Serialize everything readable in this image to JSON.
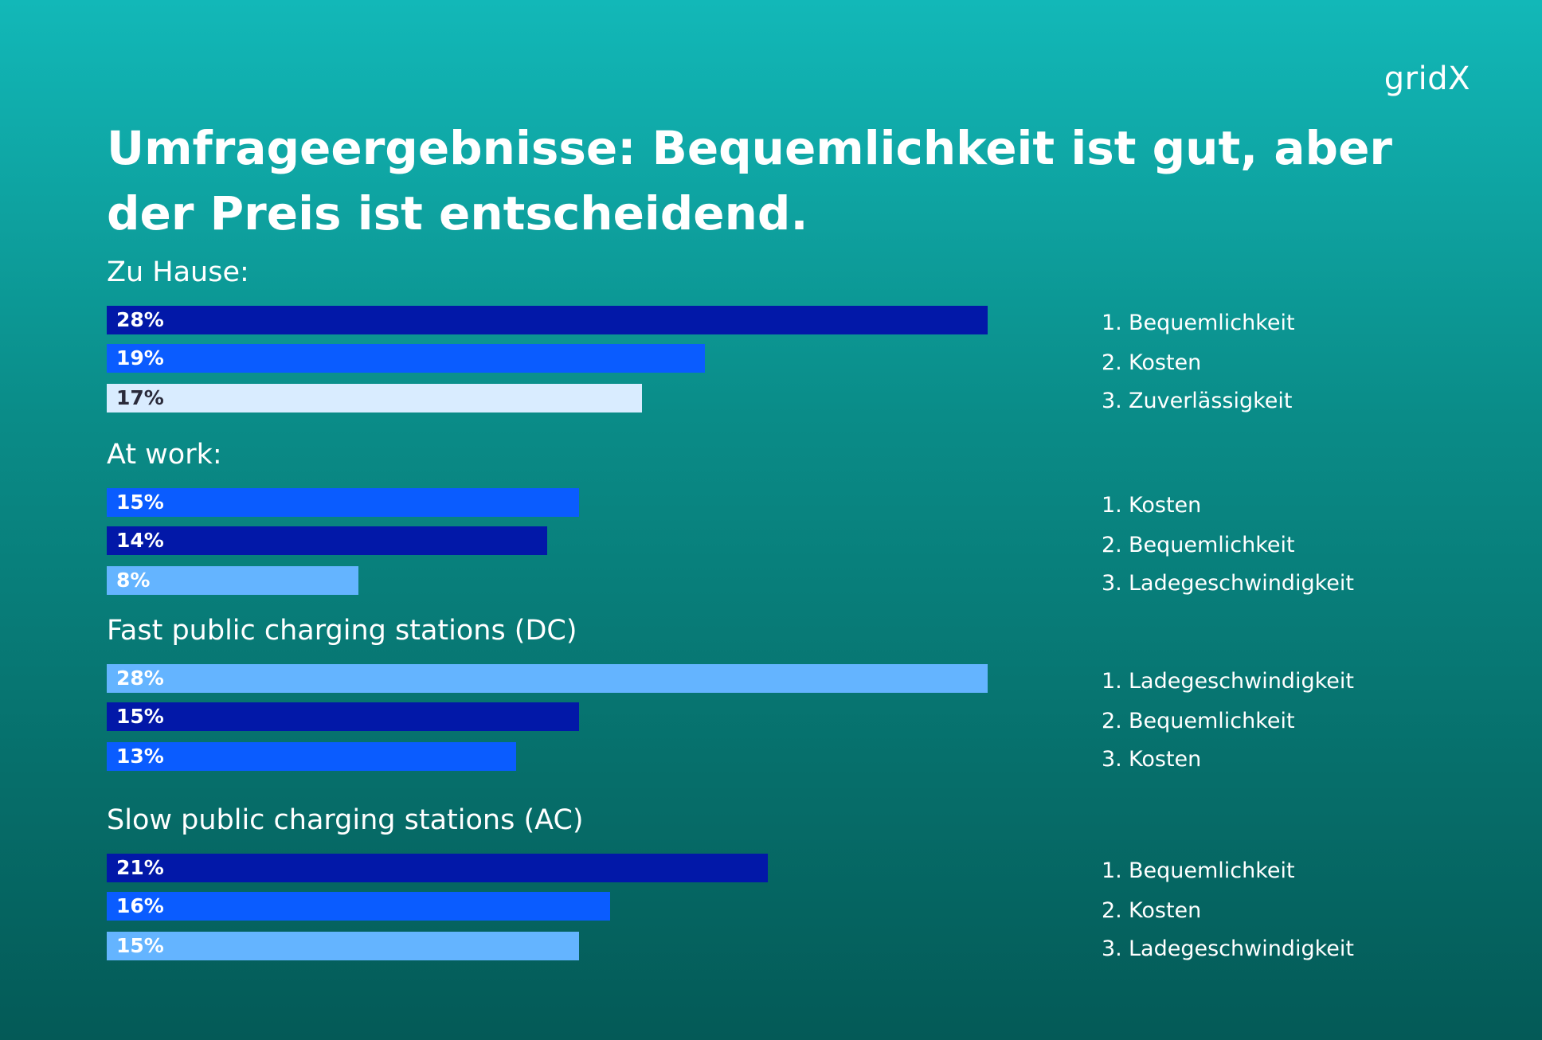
{
  "brand": "gridX",
  "title": "Umfrageergebnisse: Bequemlichkeit ist gut, aber der Preis ist entscheidend.",
  "colors": {
    "dark_blue": "#0218a8",
    "bright_blue": "#0a5cff",
    "light_blue": "#64b4ff",
    "pale_blue": "#d9ecff",
    "text_white": "#ffffff",
    "text_dark": "#2a2a3a"
  },
  "chart_data": {
    "type": "bar",
    "orientation": "horizontal",
    "title": "Umfrageergebnisse: Bequemlichkeit ist gut, aber der Preis ist entscheidend.",
    "xlabel": "",
    "ylabel": "",
    "xlim": [
      0,
      28
    ],
    "unit": "%",
    "groups": [
      {
        "label": "Zu Hause:",
        "bars": [
          {
            "value": 28,
            "display": "28%",
            "color": "dark_blue",
            "text": "white"
          },
          {
            "value": 19,
            "display": "19%",
            "color": "bright_blue",
            "text": "white"
          },
          {
            "value": 17,
            "display": "17%",
            "color": "pale_blue",
            "text": "dark"
          }
        ],
        "ranking": [
          {
            "num": "1.",
            "label": "Bequemlichkeit"
          },
          {
            "num": "2.",
            "label": "Kosten"
          },
          {
            "num": "3.",
            "label": "Zuverlässigkeit"
          }
        ]
      },
      {
        "label": "At work:",
        "bars": [
          {
            "value": 15,
            "display": "15%",
            "color": "bright_blue",
            "text": "white"
          },
          {
            "value": 14,
            "display": "14%",
            "color": "dark_blue",
            "text": "white"
          },
          {
            "value": 8,
            "display": "8%",
            "color": "light_blue",
            "text": "white"
          }
        ],
        "ranking": [
          {
            "num": "1.",
            "label": "Kosten"
          },
          {
            "num": "2.",
            "label": "Bequemlichkeit"
          },
          {
            "num": "3.",
            "label": "Ladegeschwindigkeit"
          }
        ]
      },
      {
        "label": "Fast public charging stations (DC)",
        "bars": [
          {
            "value": 28,
            "display": "28%",
            "color": "light_blue",
            "text": "white"
          },
          {
            "value": 15,
            "display": "15%",
            "color": "dark_blue",
            "text": "white"
          },
          {
            "value": 13,
            "display": "13%",
            "color": "bright_blue",
            "text": "white"
          }
        ],
        "ranking": [
          {
            "num": "1.",
            "label": "Ladegeschwindigkeit"
          },
          {
            "num": "2.",
            "label": "Bequemlichkeit"
          },
          {
            "num": "3.",
            "label": "Kosten"
          }
        ]
      },
      {
        "label": "Slow public charging stations (AC)",
        "bars": [
          {
            "value": 21,
            "display": "21%",
            "color": "dark_blue",
            "text": "white"
          },
          {
            "value": 16,
            "display": "16%",
            "color": "bright_blue",
            "text": "white"
          },
          {
            "value": 15,
            "display": "15%",
            "color": "light_blue",
            "text": "white"
          }
        ],
        "ranking": [
          {
            "num": "1.",
            "label": "Bequemlichkeit"
          },
          {
            "num": "2.",
            "label": "Kosten"
          },
          {
            "num": "3.",
            "label": "Ladegeschwindigkeit"
          }
        ]
      }
    ]
  }
}
